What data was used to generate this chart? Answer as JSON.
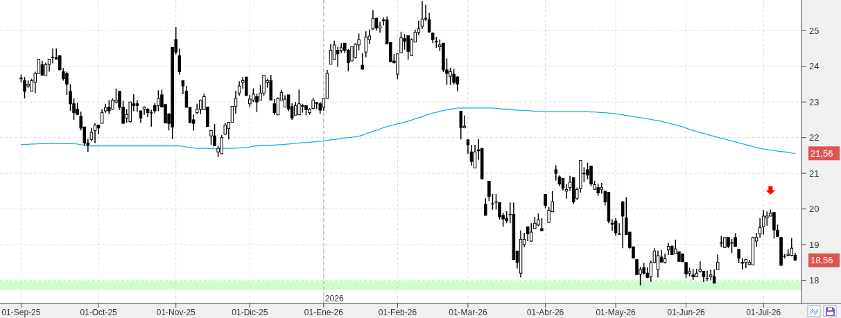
{
  "chart_data": {
    "type": "candlestick",
    "color": "#000000",
    "categories": [
      "01-Sep-25",
      null,
      null,
      null,
      null,
      null,
      null,
      null,
      null,
      null,
      null,
      null,
      null,
      null,
      null,
      null,
      null,
      null,
      null,
      null,
      null,
      null,
      "01-Oct-25",
      null,
      null,
      null,
      null,
      null,
      null,
      null,
      null,
      null,
      null,
      null,
      null,
      null,
      null,
      null,
      null,
      null,
      null,
      null,
      null,
      null,
      "01-Nov-25",
      null,
      null,
      null,
      null,
      null,
      null,
      null,
      null,
      null,
      null,
      null,
      null,
      null,
      null,
      null,
      null,
      null,
      null,
      null,
      null,
      "01-Dic-25",
      null,
      null,
      null,
      null,
      null,
      null,
      null,
      null,
      null,
      null,
      null,
      null,
      null,
      null,
      null,
      null,
      null,
      null,
      null,
      null,
      "01-Ene-26",
      null,
      null,
      null,
      null,
      null,
      null,
      null,
      null,
      null,
      null,
      null,
      null,
      null,
      null,
      null,
      null,
      null,
      null,
      null,
      null,
      "01-Feb-26",
      null,
      null,
      null,
      null,
      null,
      null,
      null,
      null,
      null,
      null,
      null,
      null,
      null,
      null,
      null,
      null,
      null,
      null,
      null,
      "01-Mar-26",
      null,
      null,
      null,
      null,
      null,
      null,
      null,
      null,
      null,
      null,
      null,
      null,
      null,
      null,
      null,
      null,
      null,
      null,
      null,
      null,
      null,
      "01-Abr-26",
      null,
      null,
      null,
      null,
      null,
      null,
      null,
      null,
      null,
      null,
      null,
      null,
      null,
      null,
      null,
      null,
      null,
      null,
      null,
      "01-May-26",
      null,
      null,
      null,
      null,
      null,
      null,
      null,
      null,
      null,
      null,
      null,
      null,
      null,
      null,
      null,
      null,
      null,
      null,
      null,
      "01-Jun-26",
      null,
      null,
      null,
      null,
      null,
      null,
      null,
      null,
      null,
      null,
      null,
      null,
      null,
      null,
      null,
      null,
      null,
      null,
      null,
      null,
      null,
      "01-Jul-26",
      null,
      null,
      null,
      null,
      null,
      null,
      null,
      null,
      null
    ],
    "ohlc": [
      [
        23.65,
        23.77,
        23.55,
        23.67
      ],
      [
        23.6,
        23.7,
        23.1,
        23.3
      ],
      [
        23.45,
        23.6,
        23.4,
        23.5
      ],
      [
        23.3,
        23.65,
        23.3,
        23.6
      ],
      [
        23.55,
        23.85,
        23.25,
        23.8
      ],
      [
        23.8,
        24.2,
        23.8,
        24.2
      ],
      [
        24.05,
        24.15,
        23.75,
        23.75
      ],
      [
        23.75,
        24.1,
        23.75,
        24.05
      ],
      [
        24.05,
        24.2,
        23.85,
        24.2
      ],
      [
        24.25,
        24.5,
        24.08,
        24.25
      ],
      [
        24.25,
        24.5,
        24.2,
        24.2
      ],
      [
        24.3,
        24.3,
        23.9,
        23.9
      ],
      [
        23.85,
        23.95,
        23.6,
        23.65
      ],
      [
        23.8,
        23.85,
        23.2,
        23.5
      ],
      [
        23.3,
        23.5,
        22.75,
        22.95
      ],
      [
        22.95,
        23.1,
        22.5,
        22.7
      ],
      [
        22.8,
        22.97,
        22.65,
        22.65
      ],
      [
        22.6,
        22.73,
        22.2,
        22.27
      ],
      [
        22.3,
        22.3,
        21.77,
        21.85
      ],
      [
        21.85,
        21.97,
        21.6,
        21.8
      ],
      [
        21.95,
        22.27,
        21.9,
        22.15
      ],
      [
        22.2,
        22.4,
        21.85,
        22.35
      ],
      [
        22.35,
        22.37,
        22.1,
        22.27
      ],
      [
        22.4,
        22.8,
        22.4,
        22.7
      ],
      [
        22.75,
        22.95,
        22.7,
        22.85
      ],
      [
        22.85,
        23.05,
        22.66,
        22.75
      ],
      [
        22.8,
        23.1,
        22.78,
        23.05
      ],
      [
        23.0,
        23.38,
        22.96,
        23.05
      ],
      [
        23.3,
        23.3,
        22.78,
        22.85
      ],
      [
        22.85,
        23.03,
        22.4,
        22.4
      ],
      [
        22.55,
        22.8,
        22.42,
        22.65
      ],
      [
        22.45,
        23.0,
        22.42,
        23.0
      ],
      [
        22.95,
        23.22,
        22.74,
        22.9
      ],
      [
        22.95,
        23.05,
        22.72,
        22.9
      ],
      [
        22.75,
        22.76,
        22.41,
        22.55
      ],
      [
        22.8,
        22.88,
        22.64,
        22.85
      ],
      [
        22.8,
        22.83,
        22.57,
        22.7
      ],
      [
        22.7,
        22.78,
        22.31,
        22.7
      ],
      [
        22.9,
        22.97,
        22.68,
        22.75
      ],
      [
        22.9,
        23.33,
        22.74,
        23.1
      ],
      [
        23.2,
        23.35,
        22.86,
        22.86
      ],
      [
        22.93,
        22.93,
        22.41,
        22.41
      ],
      [
        22.67,
        22.67,
        22.2,
        22.4
      ],
      [
        24.53,
        24.53,
        21.96,
        22.3
      ],
      [
        24.75,
        25.1,
        24.33,
        24.4
      ],
      [
        24.3,
        24.5,
        23.77,
        23.85
      ],
      [
        23.6,
        23.6,
        23.22,
        23.45
      ],
      [
        23.3,
        23.45,
        22.85,
        22.85
      ],
      [
        22.85,
        22.85,
        22.42,
        22.42
      ],
      [
        22.5,
        22.65,
        22.2,
        22.4
      ],
      [
        22.7,
        22.95,
        22.66,
        22.8
      ],
      [
        22.8,
        23.07,
        22.66,
        23.05
      ],
      [
        22.78,
        23.23,
        22.78,
        23.15
      ],
      [
        22.86,
        22.86,
        22.31,
        22.31
      ],
      [
        22.05,
        22.22,
        21.8,
        22.2
      ],
      [
        22.05,
        22.38,
        21.77,
        21.77
      ],
      [
        21.6,
        21.77,
        21.45,
        21.7
      ],
      [
        21.55,
        22.07,
        21.55,
        22.0
      ],
      [
        22.1,
        22.4,
        22.07,
        22.35
      ],
      [
        22.25,
        22.43,
        21.95,
        22.43
      ],
      [
        22.43,
        22.88,
        22.43,
        22.88
      ],
      [
        22.88,
        23.31,
        22.67,
        23.1
      ],
      [
        23.25,
        23.58,
        23.18,
        23.45
      ],
      [
        23.55,
        23.7,
        23.38,
        23.6
      ],
      [
        23.7,
        23.7,
        23.18,
        23.18
      ],
      [
        22.95,
        23.2,
        22.85,
        23.08
      ],
      [
        23.05,
        23.38,
        23.0,
        23.22
      ],
      [
        23.15,
        23.23,
        22.72,
        23.0
      ],
      [
        23.05,
        23.47,
        23.05,
        23.25
      ],
      [
        23.25,
        23.75,
        23.17,
        23.75
      ],
      [
        23.55,
        23.65,
        23.4,
        23.6
      ],
      [
        23.6,
        23.76,
        23.05,
        23.05
      ],
      [
        22.95,
        23.08,
        22.64,
        22.7
      ],
      [
        22.64,
        23.13,
        22.64,
        23.1
      ],
      [
        23.05,
        23.34,
        23.05,
        23.27
      ],
      [
        22.86,
        23.19,
        22.86,
        23.08
      ],
      [
        23.2,
        23.2,
        22.74,
        22.8
      ],
      [
        22.87,
        22.96,
        22.5,
        22.55
      ],
      [
        22.63,
        23.0,
        22.63,
        22.9
      ],
      [
        22.64,
        23.35,
        22.64,
        22.95
      ],
      [
        22.9,
        22.95,
        22.7,
        22.88
      ],
      [
        22.9,
        22.9,
        22.63,
        22.78
      ],
      [
        22.7,
        22.83,
        22.64,
        22.8
      ],
      [
        22.82,
        23.11,
        22.8,
        23.05
      ],
      [
        22.98,
        23.0,
        22.8,
        22.95
      ],
      [
        22.95,
        23.0,
        22.67,
        22.77
      ],
      [
        22.85,
        23.1,
        22.75,
        23.1
      ],
      [
        23.1,
        23.9,
        23.1,
        23.8
      ],
      [
        24.06,
        24.62,
        24.06,
        24.45
      ],
      [
        24.2,
        24.72,
        24.2,
        24.6
      ],
      [
        24.45,
        24.55,
        23.98,
        24.35
      ],
      [
        24.45,
        24.65,
        24.38,
        24.52
      ],
      [
        24.65,
        24.65,
        24.37,
        24.45
      ],
      [
        24.45,
        24.48,
        23.86,
        24.1
      ],
      [
        24.15,
        24.56,
        24.15,
        24.55
      ],
      [
        24.25,
        24.65,
        24.22,
        24.62
      ],
      [
        24.6,
        24.92,
        24.45,
        24.75
      ],
      [
        24.03,
        24.37,
        23.92,
        23.92
      ],
      [
        24.4,
        24.98,
        24.25,
        24.82
      ],
      [
        24.75,
        25.03,
        24.63,
        24.85
      ],
      [
        25.05,
        25.58,
        25.02,
        25.34
      ],
      [
        25.35,
        25.36,
        25.0,
        25.08
      ],
      [
        25.08,
        25.25,
        24.94,
        25.13
      ],
      [
        25.3,
        25.37,
        25.15,
        25.28
      ],
      [
        25.3,
        25.4,
        24.63,
        24.63
      ],
      [
        24.67,
        24.67,
        24.13,
        24.13
      ],
      [
        24.15,
        24.34,
        24.08,
        24.1
      ],
      [
        23.78,
        24.37,
        23.64,
        24.35
      ],
      [
        24.38,
        24.97,
        24.38,
        24.8
      ],
      [
        24.78,
        24.9,
        24.47,
        24.7
      ],
      [
        24.86,
        24.86,
        24.19,
        24.42
      ],
      [
        24.3,
        24.78,
        24.3,
        24.75
      ],
      [
        24.68,
        25.03,
        24.68,
        24.95
      ],
      [
        24.95,
        25.28,
        24.88,
        25.05
      ],
      [
        25.12,
        25.83,
        25.05,
        25.32
      ],
      [
        25.32,
        25.73,
        25.27,
        25.35
      ],
      [
        25.3,
        25.5,
        24.96,
        24.96
      ],
      [
        24.93,
        24.95,
        24.65,
        24.75
      ],
      [
        24.7,
        24.83,
        24.52,
        24.68
      ],
      [
        24.55,
        24.75,
        24.43,
        24.6
      ],
      [
        24.65,
        24.65,
        23.84,
        23.9
      ],
      [
        23.9,
        24.22,
        23.48,
        23.8
      ],
      [
        23.72,
        23.96,
        23.48,
        23.85
      ],
      [
        23.78,
        23.93,
        23.49,
        23.55
      ],
      [
        23.7,
        23.72,
        23.3,
        23.5
      ],
      [
        22.74,
        22.74,
        21.95,
        22.28
      ],
      [
        22.28,
        22.62,
        22.26,
        22.32
      ],
      [
        21.94,
        21.94,
        21.54,
        21.8
      ],
      [
        21.6,
        21.8,
        21.22,
        21.33
      ],
      [
        21.15,
        21.8,
        21.15,
        21.6
      ],
      [
        21.66,
        21.96,
        21.38,
        21.63
      ],
      [
        21.7,
        21.7,
        20.82,
        20.85
      ],
      [
        20.13,
        20.3,
        19.82,
        19.82
      ],
      [
        20.78,
        20.78,
        20.22,
        20.35
      ],
      [
        20.15,
        20.42,
        19.98,
        20.15
      ],
      [
        20.2,
        20.42,
        19.98,
        20.2
      ],
      [
        20.18,
        20.18,
        19.7,
        19.78
      ],
      [
        19.82,
        19.89,
        19.5,
        19.72
      ],
      [
        19.73,
        19.94,
        19.6,
        19.67
      ],
      [
        19.85,
        20.18,
        19.6,
        19.85
      ],
      [
        19.85,
        20.18,
        18.58,
        18.58
      ],
      [
        18.82,
        18.82,
        18.33,
        18.5
      ],
      [
        18.2,
        19.4,
        18.08,
        19.15
      ],
      [
        19.0,
        19.33,
        18.93,
        19.15
      ],
      [
        19.5,
        19.5,
        19.1,
        19.3
      ],
      [
        19.1,
        19.6,
        19.08,
        19.35
      ],
      [
        19.45,
        19.78,
        19.44,
        19.6
      ],
      [
        19.55,
        19.87,
        19.52,
        19.7
      ],
      [
        19.45,
        19.74,
        19.39,
        19.39
      ],
      [
        20.41,
        20.41,
        20.02,
        20.1
      ],
      [
        19.62,
        20.05,
        19.62,
        19.96
      ],
      [
        19.92,
        20.5,
        19.92,
        20.2
      ],
      [
        21.1,
        21.22,
        20.8,
        21.0
      ],
      [
        20.9,
        20.94,
        20.64,
        20.7
      ],
      [
        20.86,
        20.86,
        20.51,
        20.58
      ],
      [
        20.5,
        20.69,
        20.29,
        20.55
      ],
      [
        20.6,
        20.93,
        20.5,
        20.75
      ],
      [
        20.88,
        20.88,
        20.15,
        20.2
      ],
      [
        20.3,
        20.6,
        20.25,
        20.55
      ],
      [
        20.57,
        21.36,
        20.46,
        21.36
      ],
      [
        21.0,
        21.17,
        20.75,
        21.0
      ],
      [
        21.1,
        21.3,
        20.83,
        20.95
      ],
      [
        21.2,
        21.2,
        20.64,
        20.7
      ],
      [
        20.55,
        20.79,
        20.54,
        20.68
      ],
      [
        20.6,
        20.71,
        20.37,
        20.45
      ],
      [
        20.55,
        20.73,
        20.43,
        20.6
      ],
      [
        20.5,
        20.5,
        20.1,
        20.2
      ],
      [
        20.47,
        20.47,
        19.6,
        19.66
      ],
      [
        19.6,
        19.71,
        19.39,
        19.57
      ],
      [
        19.66,
        19.74,
        19.25,
        19.33
      ],
      [
        19.3,
        19.6,
        19.28,
        19.3
      ],
      [
        20.2,
        20.22,
        18.9,
        19.8
      ],
      [
        19.75,
        20.33,
        19.28,
        19.28
      ],
      [
        19.35,
        19.35,
        18.88,
        18.92
      ],
      [
        18.94,
        18.94,
        18.62,
        18.62
      ],
      [
        18.58,
        18.58,
        18.16,
        18.16
      ],
      [
        18.17,
        18.38,
        17.86,
        18.3
      ],
      [
        18.35,
        18.49,
        18.16,
        18.2
      ],
      [
        18.2,
        18.36,
        18.06,
        18.08
      ],
      [
        18.1,
        18.55,
        17.96,
        18.49
      ],
      [
        18.5,
        18.9,
        18.48,
        18.82
      ],
      [
        18.3,
        18.83,
        18.08,
        18.69
      ],
      [
        18.65,
        18.85,
        18.51,
        18.51
      ],
      [
        18.5,
        18.75,
        18.47,
        18.6
      ],
      [
        18.85,
        19.04,
        18.71,
        18.95
      ],
      [
        18.95,
        18.98,
        18.72,
        18.72
      ],
      [
        18.75,
        19.14,
        18.75,
        18.88
      ],
      [
        18.8,
        18.8,
        18.53,
        18.53
      ],
      [
        18.74,
        18.74,
        18.51,
        18.52
      ],
      [
        18.5,
        18.5,
        18.06,
        18.18
      ],
      [
        18.2,
        18.35,
        18.11,
        18.25
      ],
      [
        18.15,
        18.32,
        18.01,
        18.1
      ],
      [
        18.1,
        18.32,
        18.1,
        18.2
      ],
      [
        18.25,
        18.53,
        18.22,
        18.3
      ],
      [
        18.25,
        18.25,
        17.95,
        18.1
      ],
      [
        18.05,
        18.27,
        17.98,
        18.05
      ],
      [
        18.1,
        18.29,
        18.0,
        18.15
      ],
      [
        18.1,
        18.3,
        17.91,
        17.92
      ],
      [
        18.3,
        18.72,
        18.3,
        18.5
      ],
      [
        19.05,
        19.24,
        18.93,
        19.05
      ],
      [
        18.92,
        19.2,
        18.91,
        19.2
      ],
      [
        19.2,
        19.2,
        18.9,
        18.95
      ],
      [
        19.05,
        19.16,
        18.76,
        19.05
      ],
      [
        19.2,
        19.32,
        18.95,
        18.95
      ],
      [
        18.87,
        18.87,
        18.48,
        18.62
      ],
      [
        18.48,
        18.62,
        18.3,
        18.5
      ],
      [
        18.5,
        18.6,
        18.34,
        18.58
      ],
      [
        18.44,
        18.57,
        18.44,
        18.5
      ],
      [
        18.43,
        19.22,
        18.43,
        19.2
      ],
      [
        19.1,
        19.33,
        18.94,
        19.2
      ],
      [
        19.3,
        19.74,
        19.19,
        19.48
      ],
      [
        19.5,
        19.97,
        19.28,
        19.8
      ],
      [
        19.75,
        19.93,
        19.53,
        19.8
      ],
      [
        19.8,
        19.98,
        19.79,
        19.88
      ],
      [
        19.9,
        19.9,
        19.17,
        19.41
      ],
      [
        19.4,
        19.56,
        19.23,
        19.23
      ],
      [
        19.2,
        19.2,
        18.4,
        18.42
      ],
      [
        18.68,
        18.74,
        18.61,
        18.68
      ],
      [
        18.7,
        18.87,
        18.67,
        18.73
      ],
      [
        18.7,
        19.18,
        18.67,
        18.9
      ],
      [
        18.7,
        18.77,
        18.55,
        18.56
      ]
    ],
    "series": [
      {
        "type": "line",
        "color": "#1aaee5",
        "values": [
          21.8,
          21.81,
          21.81,
          21.82,
          21.82,
          21.83,
          21.83,
          21.83,
          21.83,
          21.83,
          21.83,
          21.83,
          21.83,
          21.83,
          21.83,
          21.83,
          21.82,
          21.8,
          21.79,
          21.77,
          21.77,
          21.77,
          21.77,
          21.77,
          21.77,
          21.77,
          21.77,
          21.77,
          21.77,
          21.77,
          21.77,
          21.77,
          21.77,
          21.77,
          21.77,
          21.77,
          21.77,
          21.77,
          21.77,
          21.77,
          21.77,
          21.77,
          21.77,
          21.77,
          21.77,
          21.77,
          21.76,
          21.74,
          21.73,
          21.71,
          21.7,
          21.7,
          21.7,
          21.7,
          21.69,
          21.69,
          21.69,
          21.69,
          21.7,
          21.7,
          21.7,
          21.71,
          21.71,
          21.72,
          21.73,
          21.74,
          21.76,
          21.77,
          21.77,
          21.78,
          21.78,
          21.79,
          21.79,
          21.8,
          21.8,
          21.81,
          21.82,
          21.83,
          21.84,
          21.85,
          21.86,
          21.86,
          21.87,
          21.88,
          21.89,
          21.9,
          21.91,
          21.92,
          21.94,
          21.95,
          21.96,
          21.98,
          21.99,
          22.0,
          22.01,
          22.03,
          22.04,
          22.07,
          22.11,
          22.14,
          22.17,
          22.21,
          22.24,
          22.28,
          22.31,
          22.34,
          22.36,
          22.39,
          22.41,
          22.44,
          22.46,
          22.49,
          22.53,
          22.56,
          22.59,
          22.63,
          22.66,
          22.69,
          22.71,
          22.74,
          22.76,
          22.78,
          22.8,
          22.81,
          22.83,
          22.83,
          22.83,
          22.83,
          22.83,
          22.83,
          22.83,
          22.83,
          22.83,
          22.83,
          22.83,
          22.82,
          22.81,
          22.8,
          22.8,
          22.79,
          22.78,
          22.77,
          22.77,
          22.76,
          22.76,
          22.75,
          22.74,
          22.74,
          22.73,
          22.73,
          22.73,
          22.73,
          22.73,
          22.73,
          22.73,
          22.73,
          22.73,
          22.73,
          22.73,
          22.73,
          22.73,
          22.73,
          22.72,
          22.72,
          22.71,
          22.7,
          22.7,
          22.69,
          22.68,
          22.67,
          22.65,
          22.64,
          22.62,
          22.61,
          22.59,
          22.58,
          22.56,
          22.54,
          22.53,
          22.51,
          22.49,
          22.48,
          22.46,
          22.43,
          22.41,
          22.38,
          22.36,
          22.33,
          22.3,
          22.27,
          22.23,
          22.2,
          22.17,
          22.14,
          22.12,
          22.09,
          22.06,
          22.04,
          22.01,
          21.98,
          21.96,
          21.93,
          21.91,
          21.88,
          21.85,
          21.83,
          21.8,
          21.78,
          21.75,
          21.73,
          21.7,
          21.68,
          21.67,
          21.65,
          21.64,
          21.62,
          21.61,
          21.6,
          21.59,
          21.57,
          21.56
        ]
      }
    ],
    "ylim": [
      17.35,
      25.86
    ],
    "yticks": [
      18,
      19,
      20,
      21,
      22,
      23,
      24,
      25
    ],
    "grid": true,
    "ref_lines": [
      {
        "axis": "x",
        "value": "01-Ene-26",
        "label": "2026",
        "color": "#b8b8b8",
        "line_style": "dashed"
      }
    ],
    "bands": [
      {
        "axis": "y",
        "from": 17.73,
        "to": 17.98,
        "color": "#ccffcc"
      }
    ],
    "annotations": [
      "21,56",
      "18,56"
    ]
  }
}
